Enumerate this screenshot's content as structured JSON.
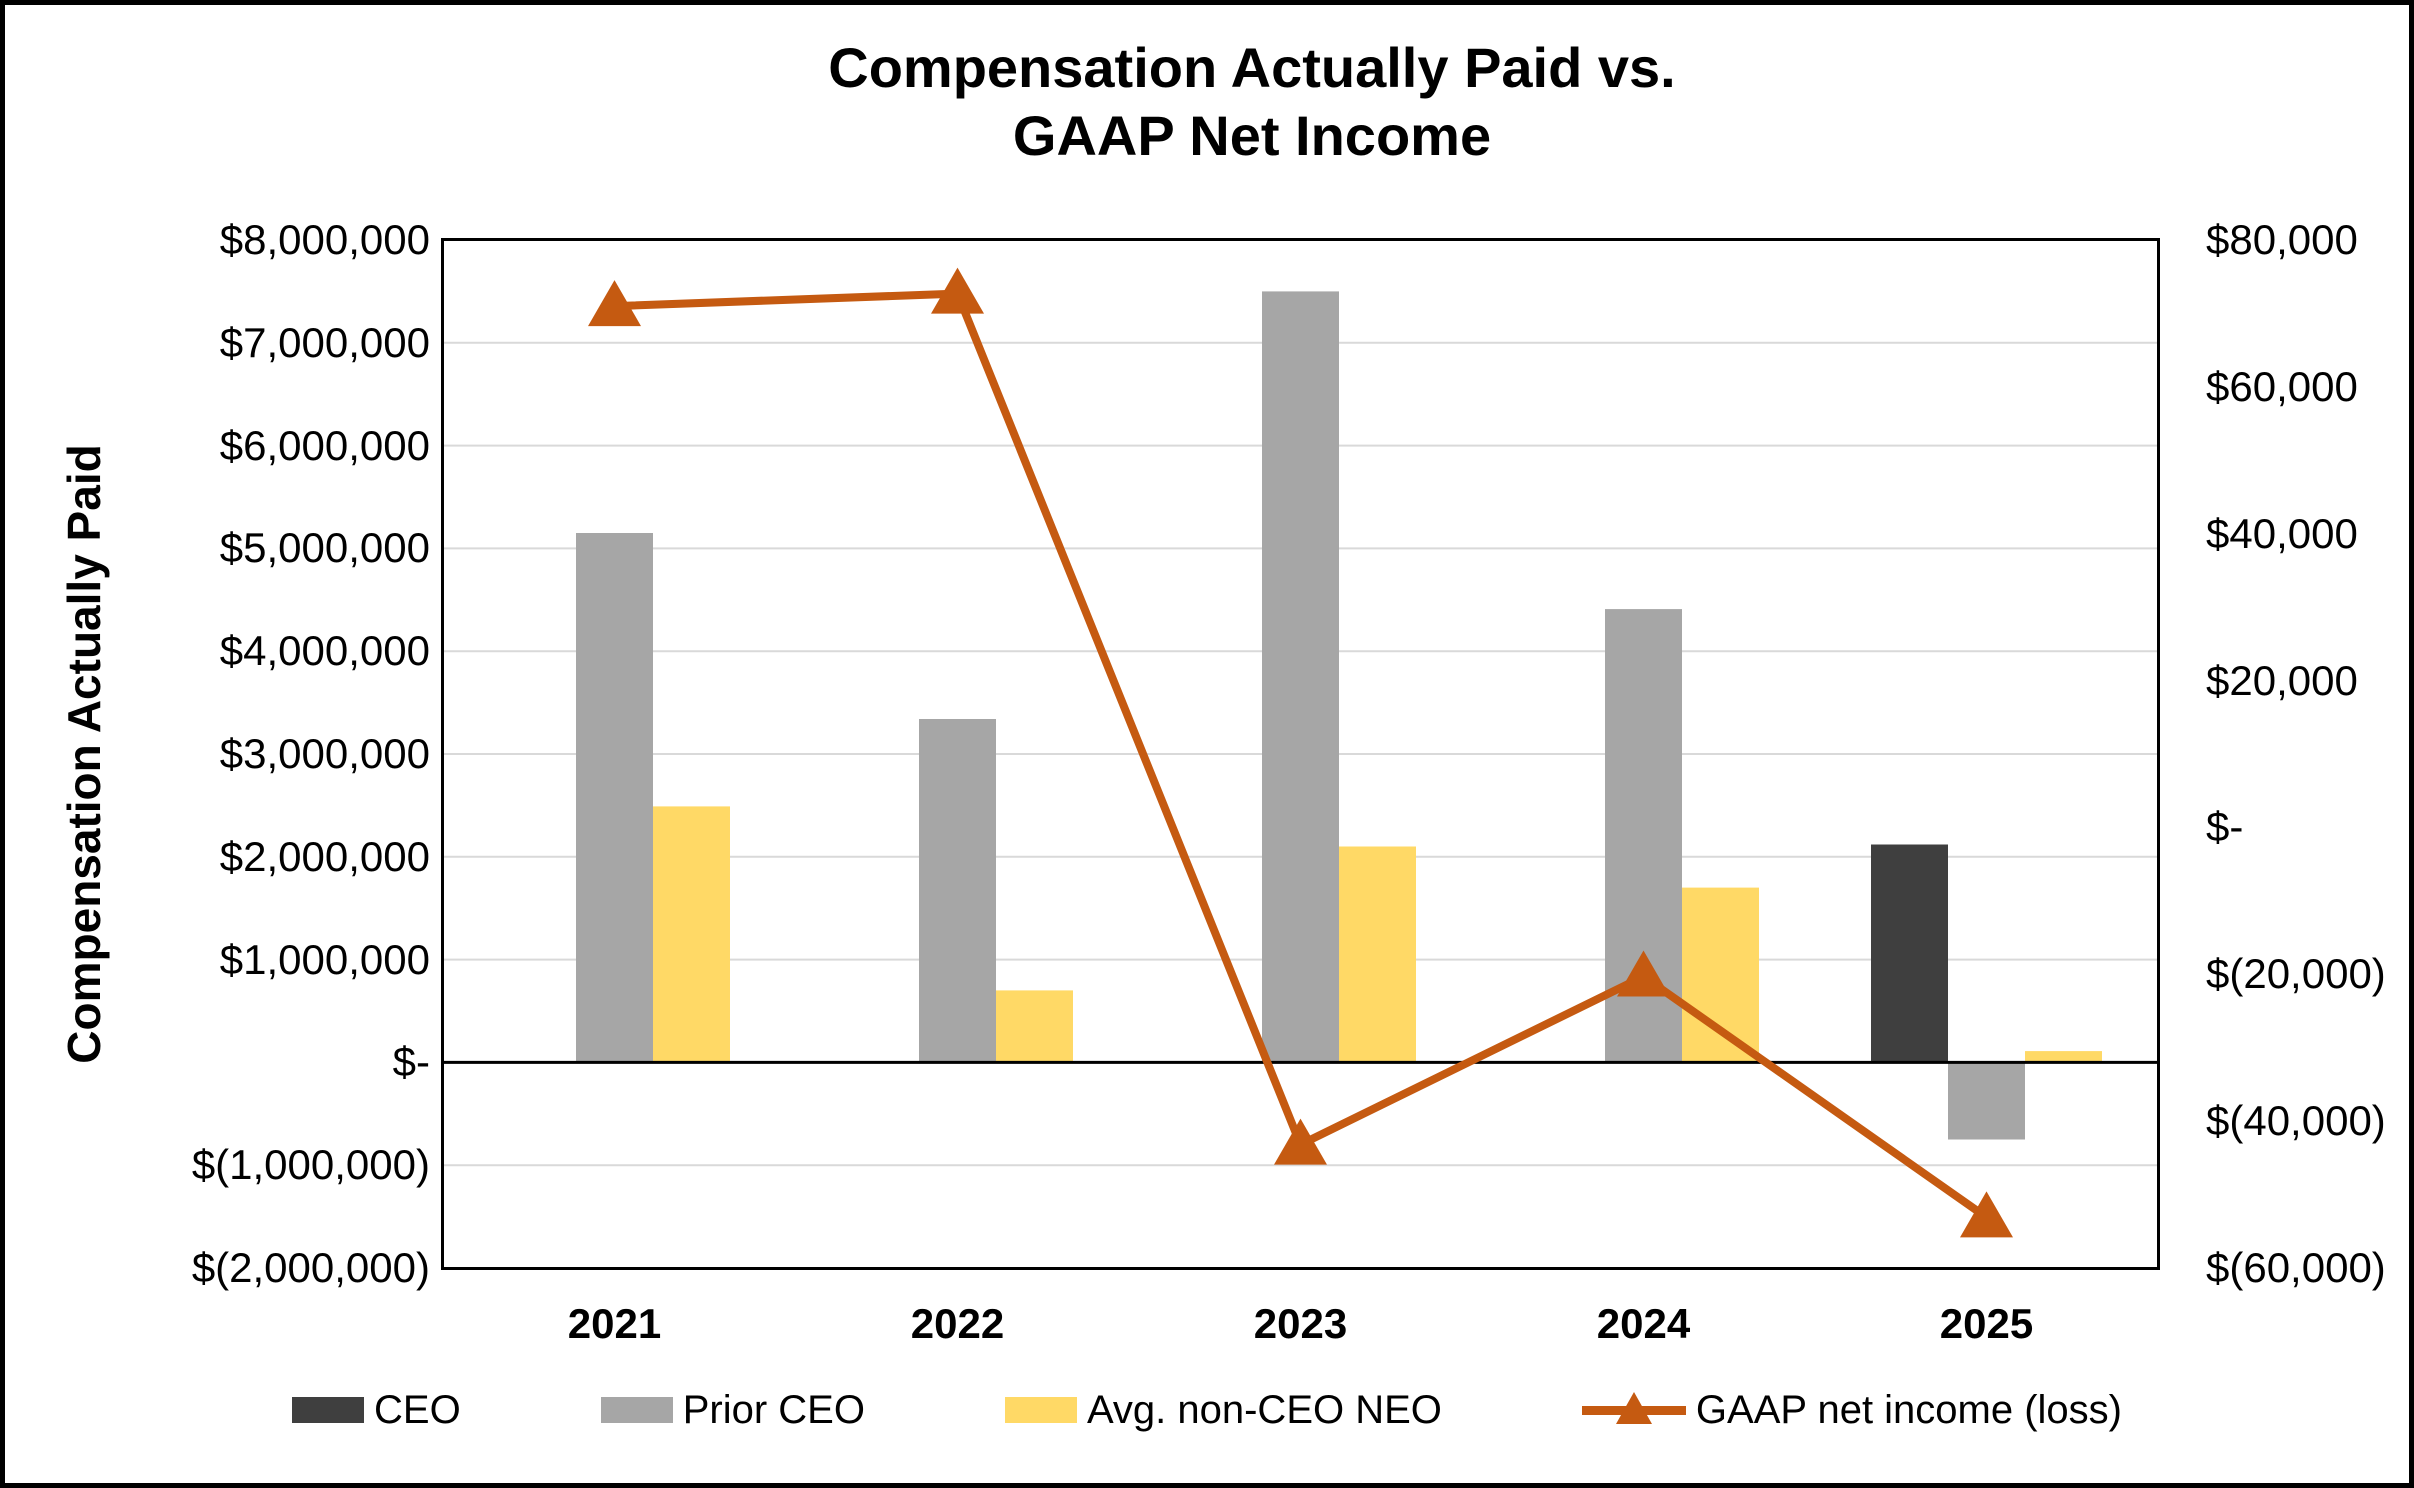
{
  "figure": {
    "title": "Compensation Actually Paid vs.\nGAAP Net Income"
  },
  "chart_data": {
    "type": "combo-bar-line",
    "categories": [
      "2021",
      "2022",
      "2023",
      "2024",
      "2025"
    ],
    "series": [
      {
        "name": "CEO",
        "type": "bar",
        "axis": "left",
        "color": "#3f3f3f",
        "values": [
          0,
          0,
          0,
          0,
          2120000
        ]
      },
      {
        "name": "Prior CEO",
        "type": "bar",
        "axis": "left",
        "color": "#a6a6a6",
        "values": [
          5150000,
          3340000,
          7500000,
          4410000,
          -750000
        ]
      },
      {
        "name": "Avg. non-CEO NEO",
        "type": "bar",
        "axis": "left",
        "color": "#ffd966",
        "values": [
          2490000,
          700000,
          2100000,
          1700000,
          110000
        ]
      },
      {
        "name": "GAAP net income (loss)",
        "type": "line",
        "axis": "right",
        "color": "#c55a11",
        "values": [
          71000,
          72700,
          -43200,
          -20300,
          -53100
        ]
      }
    ],
    "left_axis": {
      "title": "Compensation Actually Paid",
      "min": -2000000,
      "max": 8000000,
      "step": 1000000,
      "tick_labels": [
        "$8,000,000",
        "$7,000,000",
        "$6,000,000",
        "$5,000,000",
        "$4,000,000",
        "$3,000,000",
        "$2,000,000",
        "$1,000,000",
        "$-",
        "$(1,000,000)",
        "$(2,000,000)"
      ]
    },
    "right_axis": {
      "min": -60000,
      "max": 80000,
      "step": 20000,
      "tick_labels": [
        "$80,000",
        "$60,000",
        "$40,000",
        "$20,000",
        "$-",
        "$(20,000)",
        "$(40,000)",
        "$(60,000)"
      ]
    },
    "grid": true,
    "legend_position": "bottom"
  },
  "colors": {
    "background": "#ffffff",
    "gridline": "#d9d9d9",
    "axis_line": "#000000"
  }
}
